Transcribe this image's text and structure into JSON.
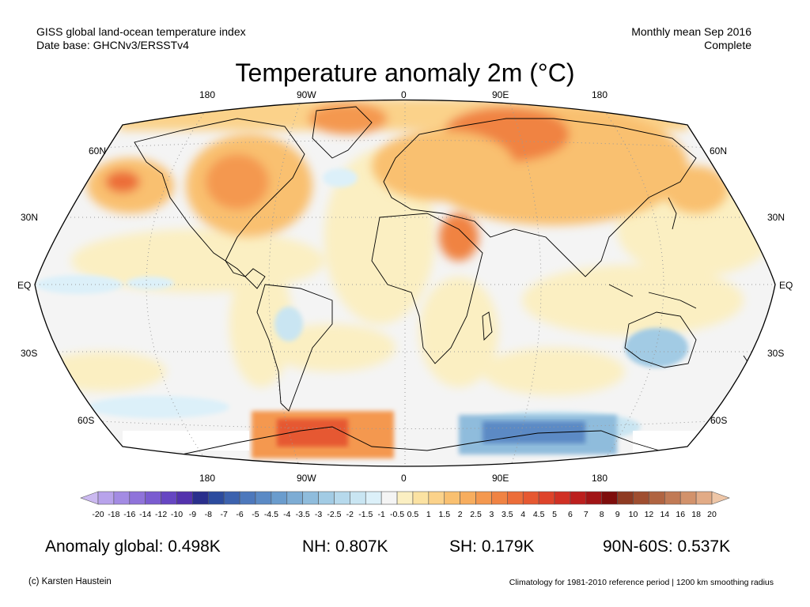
{
  "header": {
    "left_line1": "GISS global land-ocean temperature index",
    "left_line2": "Date base: GHCNv3/ERSSTv4",
    "right_line1": "Monthly mean Sep 2016",
    "right_line2": "Complete"
  },
  "title": "Temperature anomaly 2m (°C)",
  "map": {
    "projection": "Robinson",
    "lon_labels": [
      "180",
      "90W",
      "0",
      "90E",
      "180"
    ],
    "lat_labels": [
      "60N",
      "30N",
      "EQ",
      "30S",
      "60S"
    ],
    "colors": {
      "cool_anomaly": "#5b8fc7",
      "warm_anomaly": "#e8663a",
      "neutral": "#f4f4f4",
      "coastline": "#000000"
    }
  },
  "colorbar": {
    "ticks": [
      "-20",
      "-18",
      "-16",
      "-14",
      "-12",
      "-10",
      "-9",
      "-8",
      "-7",
      "-6",
      "-5",
      "-4.5",
      "-4",
      "-3.5",
      "-3",
      "-2.5",
      "-2",
      "-1.5",
      "-1",
      "-0.5",
      "0.5",
      "1",
      "1.5",
      "2",
      "2.5",
      "3",
      "3.5",
      "4",
      "4.5",
      "5",
      "6",
      "7",
      "8",
      "9",
      "10",
      "12",
      "14",
      "16",
      "18",
      "20"
    ],
    "colors": [
      "#cbb9f0",
      "#b8a3eb",
      "#a38be3",
      "#8f73da",
      "#7a5cd0",
      "#6646c2",
      "#5332ad",
      "#2a2f8c",
      "#2c4b9e",
      "#3c62ae",
      "#4d78bc",
      "#5b8ac5",
      "#6a9ccd",
      "#7dacd4",
      "#8fbcdc",
      "#a2cbe4",
      "#b6d9ec",
      "#c9e5f2",
      "#dcf0f9",
      "#f4f4f4",
      "#fbefc2",
      "#fbe2a2",
      "#fbd28a",
      "#f9c070",
      "#f7ad5e",
      "#f4984f",
      "#f08343",
      "#ec6d39",
      "#e65831",
      "#de432a",
      "#d03024",
      "#bc1f1e",
      "#a11416",
      "#7e0d0c",
      "#8e3a22",
      "#9f4e30",
      "#b06441",
      "#c17a55",
      "#d2926b",
      "#e2ab86",
      "#eec6a7"
    ]
  },
  "stats": {
    "global": "Anomaly global: 0.498K",
    "nh": "NH: 0.807K",
    "sh": "SH: 0.179K",
    "band": "90N-60S: 0.537K"
  },
  "footer": {
    "left": "(c) Karsten Haustein",
    "right": "Climatology for 1981-2010 reference period | 1200 km smoothing radius"
  }
}
